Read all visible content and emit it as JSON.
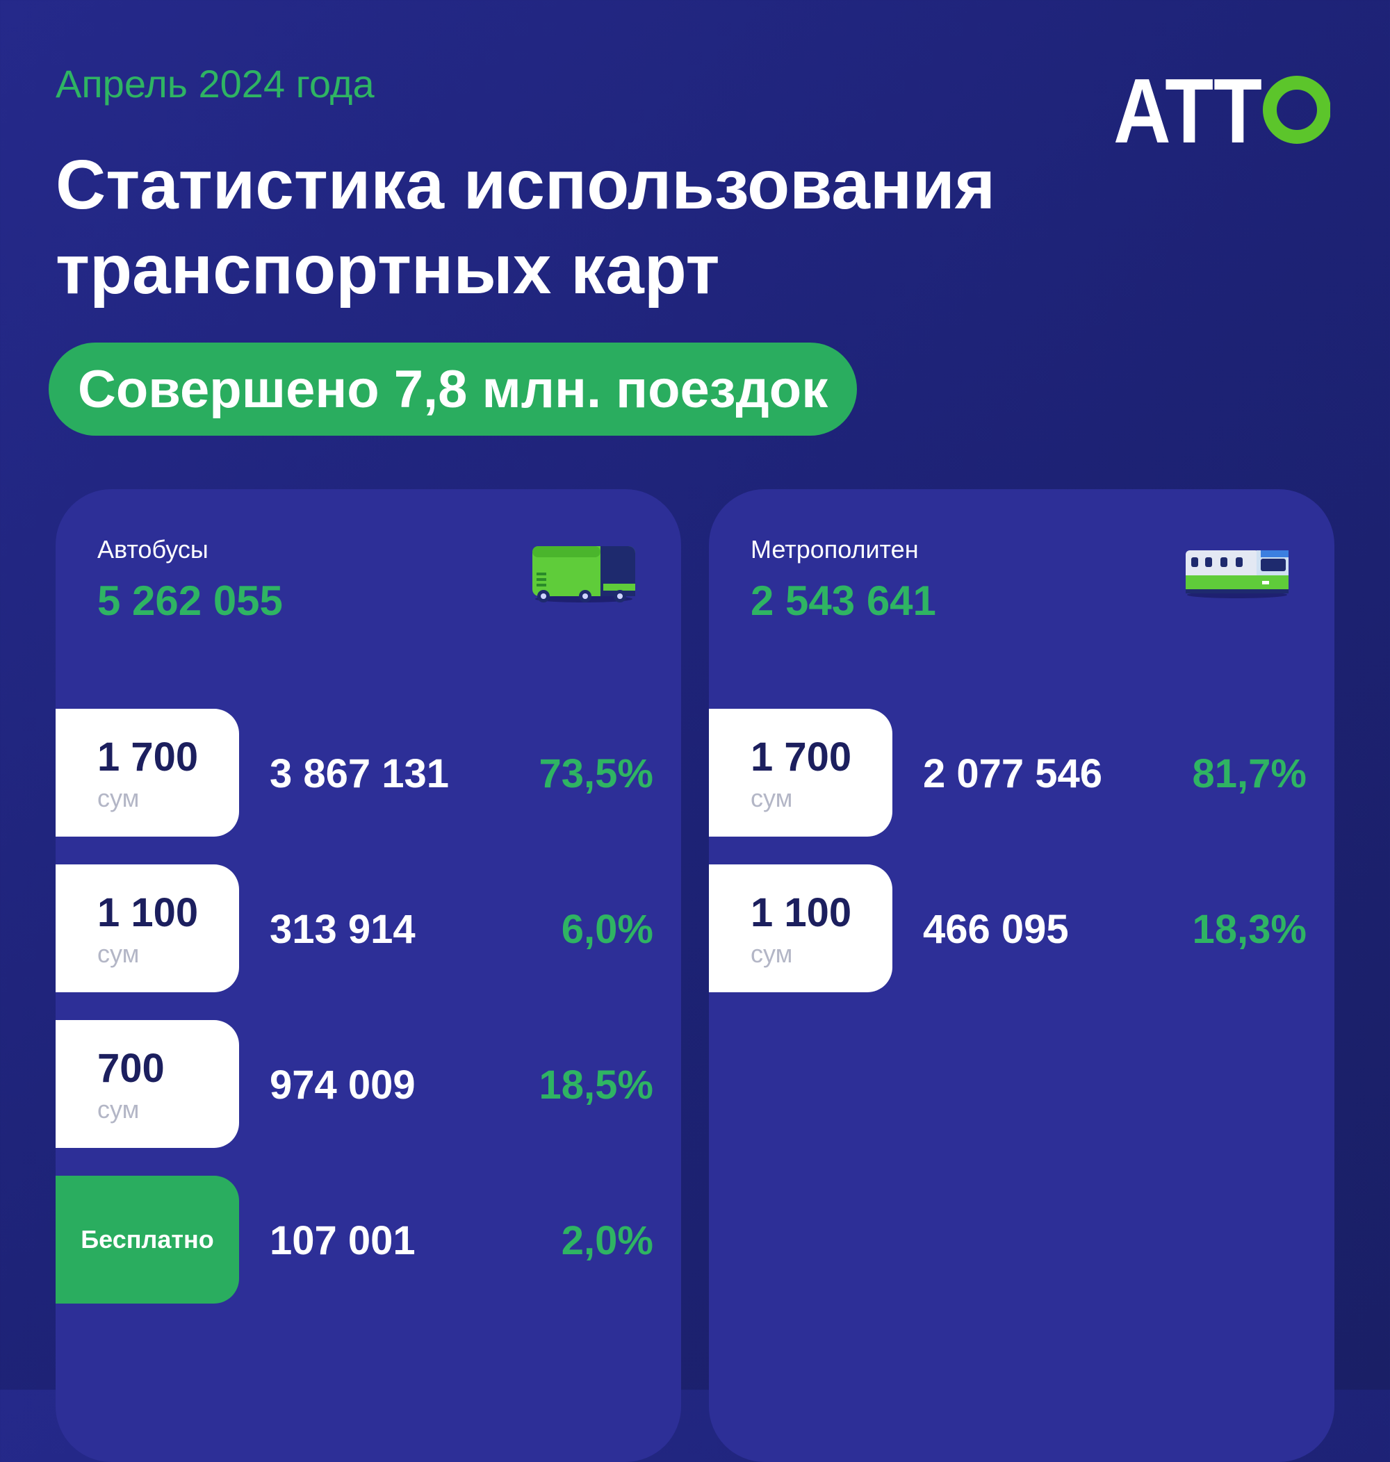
{
  "header": {
    "date": "Апрель 2024 года",
    "title_line1": "Статистика использования",
    "title_line2": "транспортных карт",
    "summary": "Совершено 7,8 млн. поездок"
  },
  "brand": {
    "logo_text": "ATTO",
    "logo_icon": "atto-logo",
    "accent": "#2fb463",
    "logo_green": "#5cc52b"
  },
  "colors": {
    "background": "#1d2275",
    "card": "#2d2f97",
    "green": "#2aad5f",
    "dark_text": "#1c1f5e"
  },
  "buses": {
    "name": "Автобусы",
    "total": "5 262 055",
    "icon": "bus-icon",
    "rows": [
      {
        "price": "1 700",
        "unit": "сум",
        "count": "3 867 131",
        "percent": "73,5%"
      },
      {
        "price": "1 100",
        "unit": "сум",
        "count": "313 914",
        "percent": "6,0%"
      },
      {
        "price": "700",
        "unit": "сум",
        "count": "974 009",
        "percent": "18,5%"
      },
      {
        "free_label": "Бесплатно",
        "count": "107 001",
        "percent": "2,0%"
      }
    ]
  },
  "metro": {
    "name": "Метрополитен",
    "total": "2 543 641",
    "icon": "metro-train-icon",
    "rows": [
      {
        "price": "1 700",
        "unit": "сум",
        "count": "2 077 546",
        "percent": "81,7%"
      },
      {
        "price": "1 100",
        "unit": "сум",
        "count": "466 095",
        "percent": "18,3%"
      }
    ]
  }
}
